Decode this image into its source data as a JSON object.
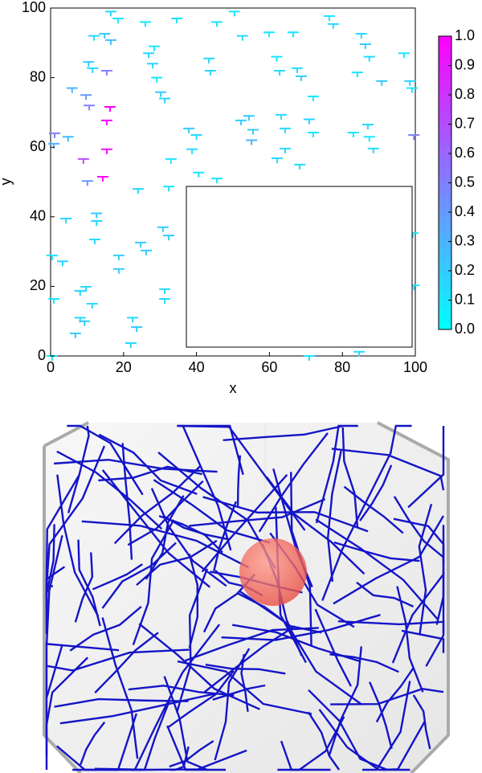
{
  "chart_data": {
    "type": "scatter",
    "x_label": "x",
    "y_label": "y",
    "xlim": [
      0,
      100
    ],
    "ylim": [
      0,
      100
    ],
    "xticks": [
      0,
      20,
      40,
      60,
      80,
      100
    ],
    "yticks": [
      0,
      20,
      40,
      60,
      80,
      100
    ],
    "clim": [
      0,
      1
    ],
    "cticks": [
      {
        "value": 0,
        "label": "0.0"
      },
      {
        "value": 0.1,
        "label": "0.1"
      },
      {
        "value": 0.2,
        "label": "0.2"
      },
      {
        "value": 0.3,
        "label": "0.3"
      },
      {
        "value": 0.4,
        "label": "0.4"
      },
      {
        "value": 0.5,
        "label": "0.5"
      },
      {
        "value": 0.6,
        "label": "0.6"
      },
      {
        "value": 0.7,
        "label": "0.7"
      },
      {
        "value": 0.8,
        "label": "0.8"
      },
      {
        "value": 0.9,
        "label": "0.9"
      },
      {
        "value": 1,
        "label": "1.0"
      }
    ],
    "colormap": [
      "#00ffff",
      "#ff00ff"
    ],
    "x": [
      16.5,
      18.5,
      11.9,
      14.8,
      16.5,
      10.4,
      11.5,
      15.4,
      5.9,
      9.7,
      10.6,
      16.3,
      15.4,
      15.4,
      14.3,
      9,
      10.1,
      1.1,
      0.9,
      4.8,
      26,
      34.6,
      45.6,
      50.4,
      52.6,
      59.9,
      66.5,
      26.9,
      28.4,
      28,
      29.1,
      43.4,
      43.8,
      62,
      62.8,
      67.6,
      68.7,
      76.4,
      77.5,
      85.2,
      86.3,
      87.4,
      84.1,
      90.8,
      96.9,
      98.5,
      99.1,
      30.2,
      31.3,
      52.2,
      54.4,
      55.5,
      55.1,
      63.2,
      64.3,
      70.9,
      72,
      72,
      64.3,
      62.1,
      68.3,
      83,
      87,
      87.4,
      88.5,
      99.6,
      37.9,
      40,
      38.8,
      33,
      40.6,
      45.6,
      24,
      32.4,
      4.2,
      12.6,
      12.6,
      12.1,
      0.4,
      3.3,
      18.7,
      18.7,
      24.7,
      26.2,
      30.8,
      32.4,
      8.1,
      9.7,
      11.4,
      0.9,
      8.1,
      9.3,
      6.8,
      22.5,
      23.6,
      22,
      31.3,
      31.3,
      99.3,
      99.6,
      84.6,
      70.9,
      0.4
    ],
    "y": [
      99,
      97,
      92,
      92.6,
      90.8,
      84.5,
      82.7,
      82,
      77,
      75,
      72,
      71.6,
      67.7,
      59.4,
      51.5,
      56.6,
      50.3,
      64,
      61,
      63,
      96,
      97,
      96,
      99,
      92,
      93,
      93,
      87,
      89,
      84,
      80,
      85.5,
      82,
      86,
      82,
      82.7,
      80.4,
      97.7,
      95.4,
      92.6,
      89.6,
      86,
      81.5,
      79,
      87,
      79,
      77,
      75.8,
      74,
      67.7,
      69,
      65,
      62,
      69.3,
      65.4,
      68,
      64.2,
      74.6,
      59.6,
      56.8,
      55,
      64.2,
      66.5,
      63,
      59.6,
      63.5,
      65.4,
      63.5,
      59.4,
      56.6,
      52.7,
      51,
      48,
      48.7,
      39.5,
      41,
      38.8,
      33.5,
      28.9,
      27.2,
      28.9,
      25,
      32.6,
      30.3,
      37,
      34.6,
      18.7,
      19.9,
      15,
      16.4,
      11,
      10,
      6.5,
      11,
      8.3,
      3.7,
      19.2,
      16.4,
      35.3,
      20.3,
      1.2,
      0,
      0
    ],
    "values": [
      0.15,
      0.1,
      0.15,
      0.2,
      0.25,
      0.2,
      0.15,
      0.5,
      0.3,
      0.4,
      0.5,
      1,
      0.95,
      0.95,
      1,
      0.7,
      0.4,
      0.5,
      0.3,
      0.25,
      0.1,
      0.1,
      0.1,
      0.1,
      0.15,
      0.1,
      0.1,
      0.15,
      0.1,
      0.15,
      0.1,
      0.15,
      0.15,
      0.1,
      0.15,
      0.15,
      0.2,
      0.1,
      0.15,
      0.15,
      0.2,
      0.15,
      0.1,
      0.2,
      0.1,
      0.15,
      0.1,
      0.2,
      0.15,
      0.2,
      0.2,
      0.2,
      0.3,
      0.15,
      0.15,
      0.15,
      0.1,
      0.1,
      0.15,
      0.15,
      0.15,
      0.1,
      0.15,
      0.1,
      0.15,
      0.5,
      0.2,
      0.15,
      0.15,
      0.1,
      0.1,
      0.1,
      0.15,
      0.1,
      0.15,
      0.2,
      0.15,
      0.15,
      0.1,
      0.15,
      0.2,
      0.2,
      0.2,
      0.2,
      0.2,
      0.2,
      0.15,
      0.15,
      0.15,
      0.1,
      0.15,
      0.2,
      0.2,
      0.15,
      0.2,
      0.15,
      0.15,
      0.15,
      0.1,
      0.1,
      0.15,
      0.1,
      0.1
    ]
  }
}
